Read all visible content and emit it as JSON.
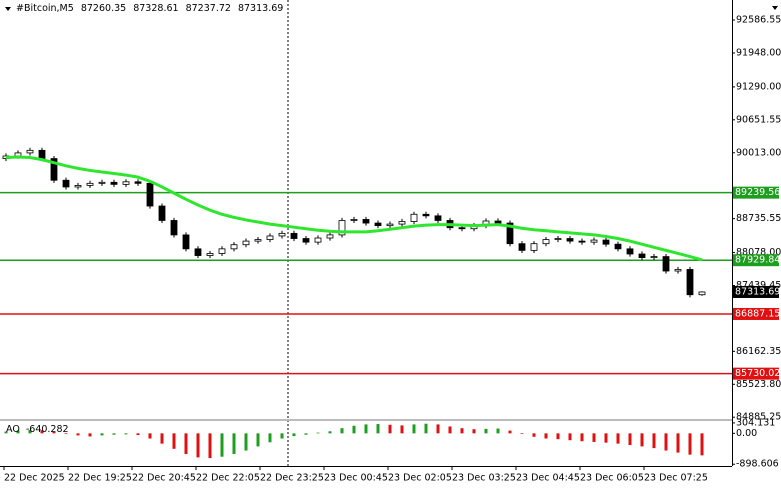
{
  "chart_data": [
    {
      "type": "candlestick",
      "title": "#Bitcoin,M5",
      "open": [
        89900,
        89950,
        90010,
        90060,
        89900,
        89480,
        89350,
        89380,
        89420,
        89440,
        89400,
        89450,
        89420,
        88980,
        88700,
        88420,
        88150,
        88020,
        88060,
        88150,
        88230,
        88300,
        88330,
        88400,
        88450,
        88350,
        88280,
        88360,
        88420,
        88700,
        88720,
        88650,
        88600,
        88630,
        88680,
        88820,
        88790,
        88700,
        88560,
        88540,
        88600,
        88690,
        88650,
        88250,
        88120,
        88250,
        88330,
        88350,
        88300,
        88280,
        88320,
        88240,
        88150,
        88050,
        87980,
        88000,
        87720,
        87750,
        87260.35
      ],
      "high": [
        90000,
        90060,
        90110,
        90110,
        89950,
        89530,
        89430,
        89470,
        89490,
        89490,
        89500,
        89500,
        89470,
        89030,
        88750,
        88470,
        88200,
        88110,
        88200,
        88280,
        88350,
        88380,
        88450,
        88500,
        88500,
        88400,
        88410,
        88470,
        88750,
        88770,
        88770,
        88700,
        88680,
        88730,
        88870,
        88870,
        88840,
        88750,
        88610,
        88650,
        88740,
        88740,
        88700,
        88300,
        88300,
        88380,
        88400,
        88400,
        88350,
        88370,
        88370,
        88290,
        88200,
        88100,
        88050,
        88050,
        87800,
        87800,
        87328.61
      ],
      "low": [
        89850,
        89900,
        89960,
        89850,
        89430,
        89300,
        89300,
        89330,
        89370,
        89350,
        89350,
        89370,
        88930,
        88650,
        88370,
        88100,
        87970,
        87970,
        88010,
        88100,
        88180,
        88250,
        88280,
        88350,
        88300,
        88230,
        88230,
        88310,
        88370,
        88650,
        88600,
        88550,
        88550,
        88580,
        88630,
        88740,
        88650,
        88510,
        88490,
        88490,
        88550,
        88600,
        88200,
        88070,
        88070,
        88200,
        88280,
        88250,
        88230,
        88230,
        88190,
        88100,
        88000,
        87930,
        87930,
        87670,
        87670,
        87210,
        87237.72
      ],
      "close": [
        89950,
        90010,
        90060,
        89900,
        89480,
        89350,
        89380,
        89420,
        89440,
        89400,
        89450,
        89420,
        88980,
        88700,
        88420,
        88150,
        88020,
        88060,
        88150,
        88230,
        88300,
        88330,
        88400,
        88450,
        88350,
        88280,
        88360,
        88420,
        88700,
        88720,
        88650,
        88600,
        88630,
        88680,
        88820,
        88790,
        88700,
        88560,
        88540,
        88600,
        88690,
        88650,
        88250,
        88120,
        88250,
        88330,
        88350,
        88300,
        88280,
        88320,
        88240,
        88150,
        88050,
        87980,
        88000,
        87720,
        87750,
        87260.35,
        87313.69
      ],
      "bull_color": "#ffffff",
      "bear_color": "#000000",
      "wick_color": "#000000",
      "ma": {
        "color": "#2ee62e",
        "values": [
          89920,
          89930,
          89920,
          89880,
          89820,
          89760,
          89710,
          89670,
          89640,
          89610,
          89580,
          89540,
          89460,
          89350,
          89230,
          89110,
          89000,
          88900,
          88820,
          88760,
          88710,
          88670,
          88630,
          88600,
          88570,
          88540,
          88510,
          88490,
          88480,
          88480,
          88480,
          88500,
          88530,
          88560,
          88590,
          88610,
          88620,
          88620,
          88610,
          88600,
          88610,
          88620,
          88590,
          88550,
          88520,
          88500,
          88480,
          88460,
          88440,
          88420,
          88390,
          88350,
          88300,
          88240,
          88180,
          88120,
          88060,
          88000,
          87935
        ]
      },
      "ylim": [
        84870,
        92975
      ],
      "yticks": [
        92586.55,
        {
          "value": 91948,
          "label": "91948.00"
        },
        {
          "value": 91290,
          "label": "91290.00"
        },
        90651.55,
        {
          "value": 90013,
          "label": "90013.00"
        },
        88735.55,
        {
          "value": 88078,
          "label": "88078.00"
        },
        87439.45,
        86162.35,
        {
          "value": 85523.8,
          "label": "85523.80"
        },
        84885.25
      ],
      "levels": [
        {
          "value": 89239.56,
          "color": "#1e9e1e"
        },
        {
          "value": 87929.84,
          "color": "#1e9e1e"
        },
        {
          "value": 86887.15,
          "color": "#e01010"
        },
        {
          "value": 85730.02,
          "color": "#e01010"
        }
      ],
      "x_labels": [
        "22 Dec 2025",
        "22 Dec 19:25",
        "22 Dec 20:45",
        "22 Dec 22:05",
        "22 Dec 23:25",
        "23 Dec 00:45",
        "23 Dec 02:05",
        "23 Dec 03:25",
        "23 Dec 04:45",
        "23 Dec 06:05",
        "23 Dec 07:25"
      ]
    },
    {
      "type": "bar",
      "name": "AO",
      "values": [
        50,
        80,
        100,
        90,
        40,
        -20,
        -60,
        -90,
        -60,
        -40,
        -30,
        -50,
        -150,
        -300,
        -450,
        -600,
        -700,
        -720,
        -680,
        -600,
        -500,
        -380,
        -260,
        -150,
        -80,
        -40,
        20,
        60,
        150,
        220,
        260,
        270,
        250,
        230,
        260,
        280,
        260,
        200,
        150,
        120,
        130,
        140,
        80,
        -20,
        -100,
        -150,
        -170,
        -200,
        -230,
        -250,
        -270,
        -300,
        -340,
        -380,
        -430,
        -500,
        -560,
        -620,
        -640.282
      ],
      "up_color": "#1e9e1e",
      "down_color": "#e01010",
      "ylim": [
        -950,
        330
      ],
      "yticks": [
        304.131,
        {
          "value": 0,
          "label": "0.00"
        },
        -898.606
      ]
    }
  ]
}
